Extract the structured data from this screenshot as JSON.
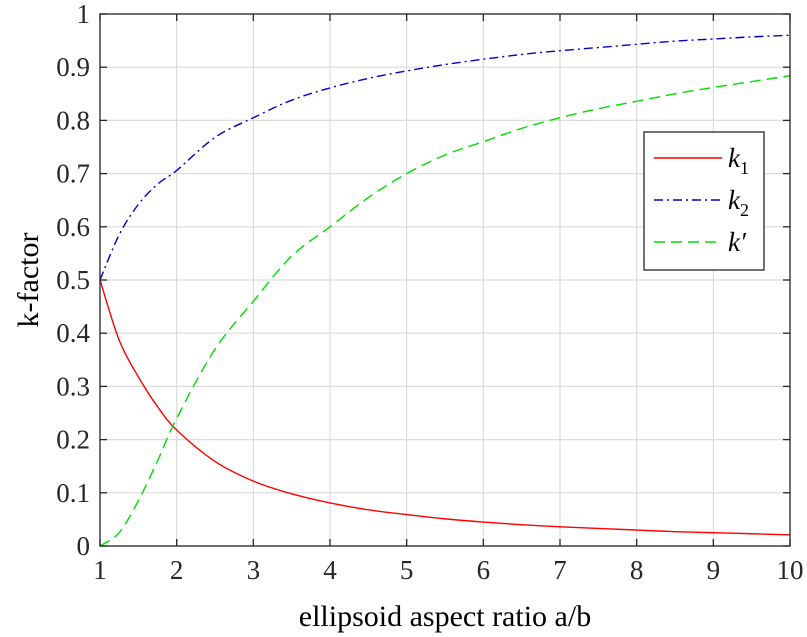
{
  "chart_data": {
    "type": "line",
    "xlabel": "ellipsoid aspect ratio a/b",
    "ylabel": "k-factor",
    "xlim": [
      1,
      10
    ],
    "ylim": [
      0,
      1
    ],
    "x_ticks": [
      "1",
      "2",
      "3",
      "4",
      "5",
      "6",
      "7",
      "8",
      "9",
      "10"
    ],
    "y_ticks": [
      "0",
      "0.1",
      "0.2",
      "0.3",
      "0.4",
      "0.5",
      "0.6",
      "0.7",
      "0.8",
      "0.9",
      "1"
    ],
    "grid": true,
    "legend_position": "top-right",
    "x": [
      1,
      1.25,
      1.5,
      1.75,
      2,
      2.5,
      3,
      3.5,
      4,
      4.5,
      5,
      5.5,
      6,
      6.5,
      7,
      7.5,
      8,
      8.5,
      9,
      9.5,
      10
    ],
    "series": [
      {
        "name": "k1",
        "name_base": "k",
        "name_sub": "1",
        "color": "#ff0000",
        "dash": "solid",
        "values": [
          0.5,
          0.387,
          0.318,
          0.262,
          0.218,
          0.159,
          0.122,
          0.098,
          0.081,
          0.068,
          0.059,
          0.051,
          0.045,
          0.04,
          0.036,
          0.033,
          0.03,
          0.027,
          0.025,
          0.023,
          0.021
        ]
      },
      {
        "name": "k2",
        "name_base": "k",
        "name_sub": "2",
        "color": "#0000cc",
        "dash": "dash-dot",
        "values": [
          0.5,
          0.585,
          0.642,
          0.68,
          0.706,
          0.768,
          0.805,
          0.838,
          0.861,
          0.879,
          0.893,
          0.905,
          0.915,
          0.924,
          0.931,
          0.937,
          0.943,
          0.949,
          0.953,
          0.957,
          0.96
        ]
      },
      {
        "name": "k'",
        "name_base": "k",
        "name_sup": "′",
        "color": "#00dd00",
        "dash": "dashed",
        "values": [
          0.0,
          0.025,
          0.085,
          0.16,
          0.24,
          0.37,
          0.46,
          0.545,
          0.6,
          0.655,
          0.7,
          0.735,
          0.76,
          0.785,
          0.805,
          0.822,
          0.836,
          0.85,
          0.862,
          0.873,
          0.884
        ]
      }
    ]
  }
}
